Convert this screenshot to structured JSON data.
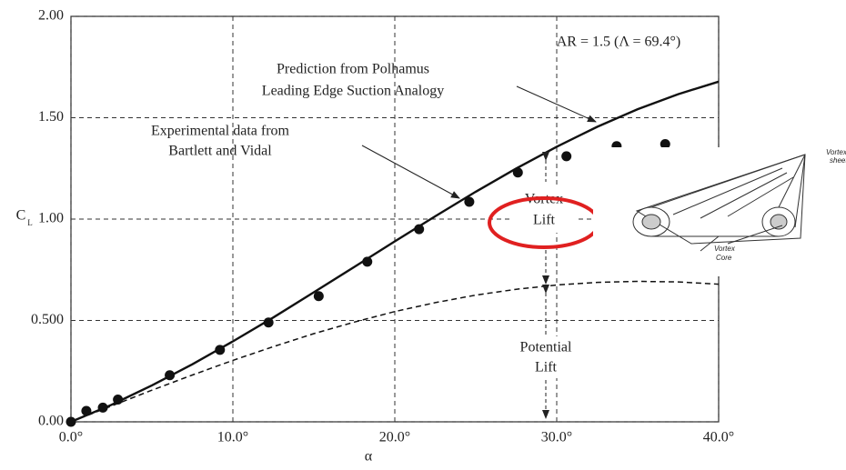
{
  "chart_data": {
    "type": "line",
    "xlabel": "α",
    "ylabel": "C",
    "ylabel_sub": "L",
    "annotations": [
      "AR = 1.5 (Λ = 69.4°)",
      "Prediction from Polhamus",
      "Leading Edge Suction Analogy",
      "Experimental data from",
      "Bartlett and Vidal",
      "Vortex",
      "Lift",
      "Potential",
      "Lift"
    ],
    "inset_labels": [
      "Vortex",
      "sheet",
      "Vortex",
      "Core"
    ],
    "xlim": [
      0,
      40
    ],
    "ylim": [
      0,
      2
    ],
    "xticks": [
      {
        "value": 0,
        "label": "0.0°"
      },
      {
        "value": 10,
        "label": "10.0°"
      },
      {
        "value": 20,
        "label": "20.0°"
      },
      {
        "value": 30,
        "label": "30.0°"
      },
      {
        "value": 40,
        "label": "40.0°"
      }
    ],
    "yticks": [
      {
        "value": 0,
        "label": "0.00"
      },
      {
        "value": 0.5,
        "label": "0.500"
      },
      {
        "value": 1,
        "label": "1.00"
      },
      {
        "value": 1.5,
        "label": "1.50"
      },
      {
        "value": 2,
        "label": "2.00"
      }
    ],
    "grid": true,
    "series": [
      {
        "style": "solid",
        "color": "#111111",
        "x": [
          0,
          2.5,
          5,
          7.5,
          10,
          12.5,
          15,
          17.5,
          20,
          22.5,
          25,
          27.5,
          30,
          32.5,
          35,
          37.5,
          40
        ],
        "values": [
          0,
          0.084,
          0.18,
          0.284,
          0.397,
          0.515,
          0.639,
          0.764,
          0.89,
          1.014,
          1.135,
          1.25,
          1.357,
          1.455,
          1.542,
          1.616,
          1.678
        ]
      },
      {
        "style": "dashed",
        "color": "#111111",
        "x": [
          0,
          2.5,
          5,
          7.5,
          10,
          12.5,
          15,
          17.5,
          20,
          22.5,
          25,
          27.5,
          30,
          32.5,
          35,
          37.5,
          40
        ],
        "values": [
          0,
          0.078,
          0.156,
          0.231,
          0.303,
          0.371,
          0.435,
          0.492,
          0.544,
          0.588,
          0.625,
          0.654,
          0.675,
          0.688,
          0.693,
          0.69,
          0.679
        ]
      },
      {
        "style": "markers",
        "color": "#111111",
        "x": [
          0,
          0.95,
          1.97,
          2.9,
          6.1,
          9.2,
          12.2,
          15.3,
          18.3,
          21.5,
          24.6,
          27.6,
          30.6,
          33.7,
          36.7
        ],
        "values": [
          0,
          0.054,
          0.07,
          0.11,
          0.23,
          0.355,
          0.49,
          0.62,
          0.79,
          0.95,
          1.085,
          1.23,
          1.31,
          1.36,
          1.37
        ]
      }
    ]
  }
}
